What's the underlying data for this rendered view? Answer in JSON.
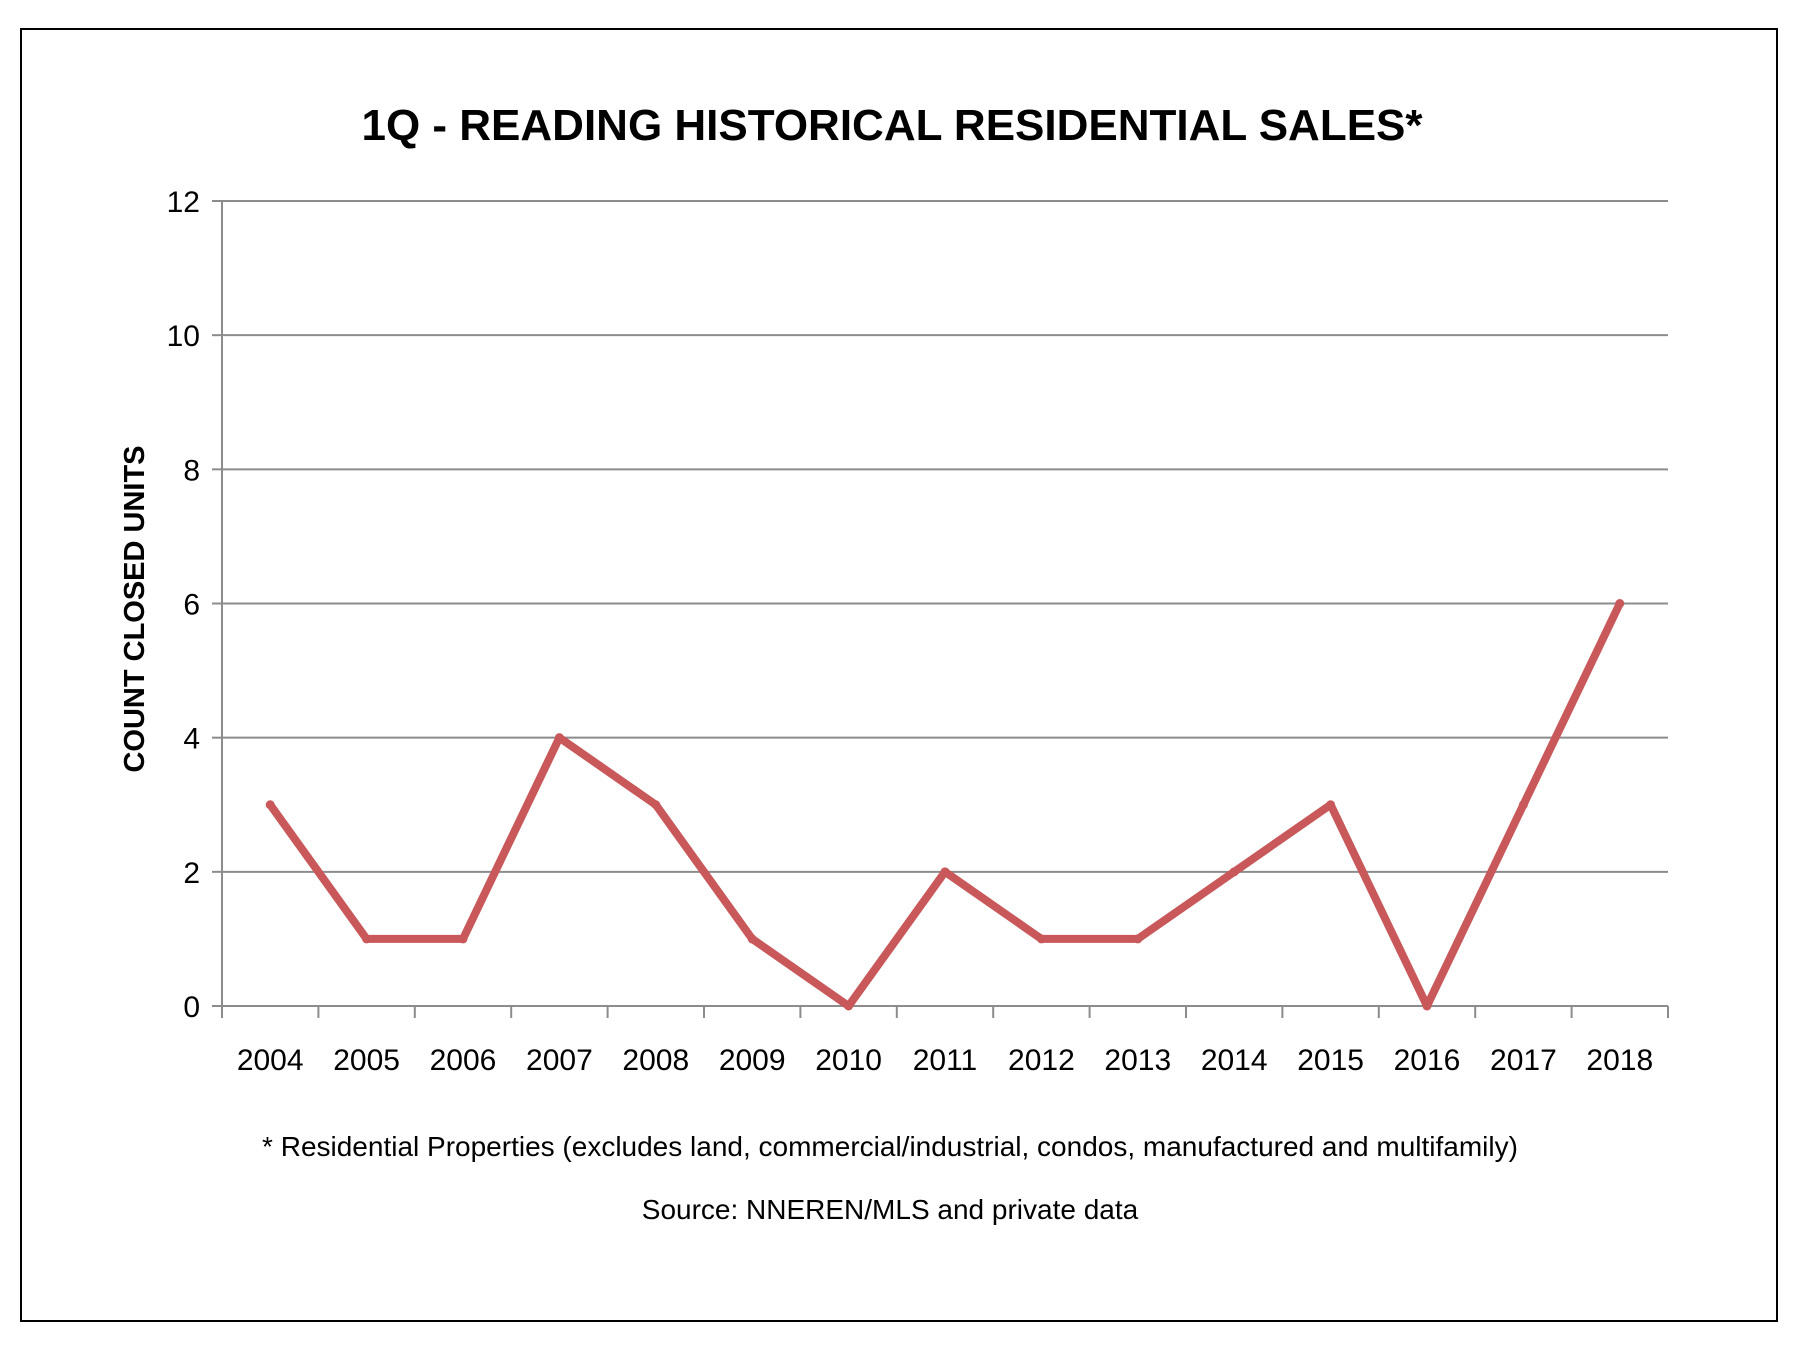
{
  "chart_data": {
    "type": "line",
    "title": "1Q - READING HISTORICAL RESIDENTIAL SALES*",
    "xlabel": "",
    "ylabel": "COUNT CLOSED UNITS",
    "categories": [
      "2004",
      "2005",
      "2006",
      "2007",
      "2008",
      "2009",
      "2010",
      "2011",
      "2012",
      "2013",
      "2014",
      "2015",
      "2016",
      "2017",
      "2018"
    ],
    "series": [
      {
        "values": [
          3,
          1,
          1,
          4,
          3,
          1,
          0,
          2,
          1,
          1,
          2,
          3,
          0,
          3,
          6
        ]
      }
    ],
    "ylim": [
      0,
      12
    ],
    "yticks": [
      0,
      2,
      4,
      6,
      8,
      10,
      12
    ],
    "grid": true,
    "legend": "none",
    "line_color": "#c9585a",
    "grid_color": "#8c8c8c",
    "footnote": "* Residential Properties (excludes land, commercial/industrial, condos, manufactured and multifamily)",
    "source": "Source: NNEREN/MLS and private data"
  }
}
